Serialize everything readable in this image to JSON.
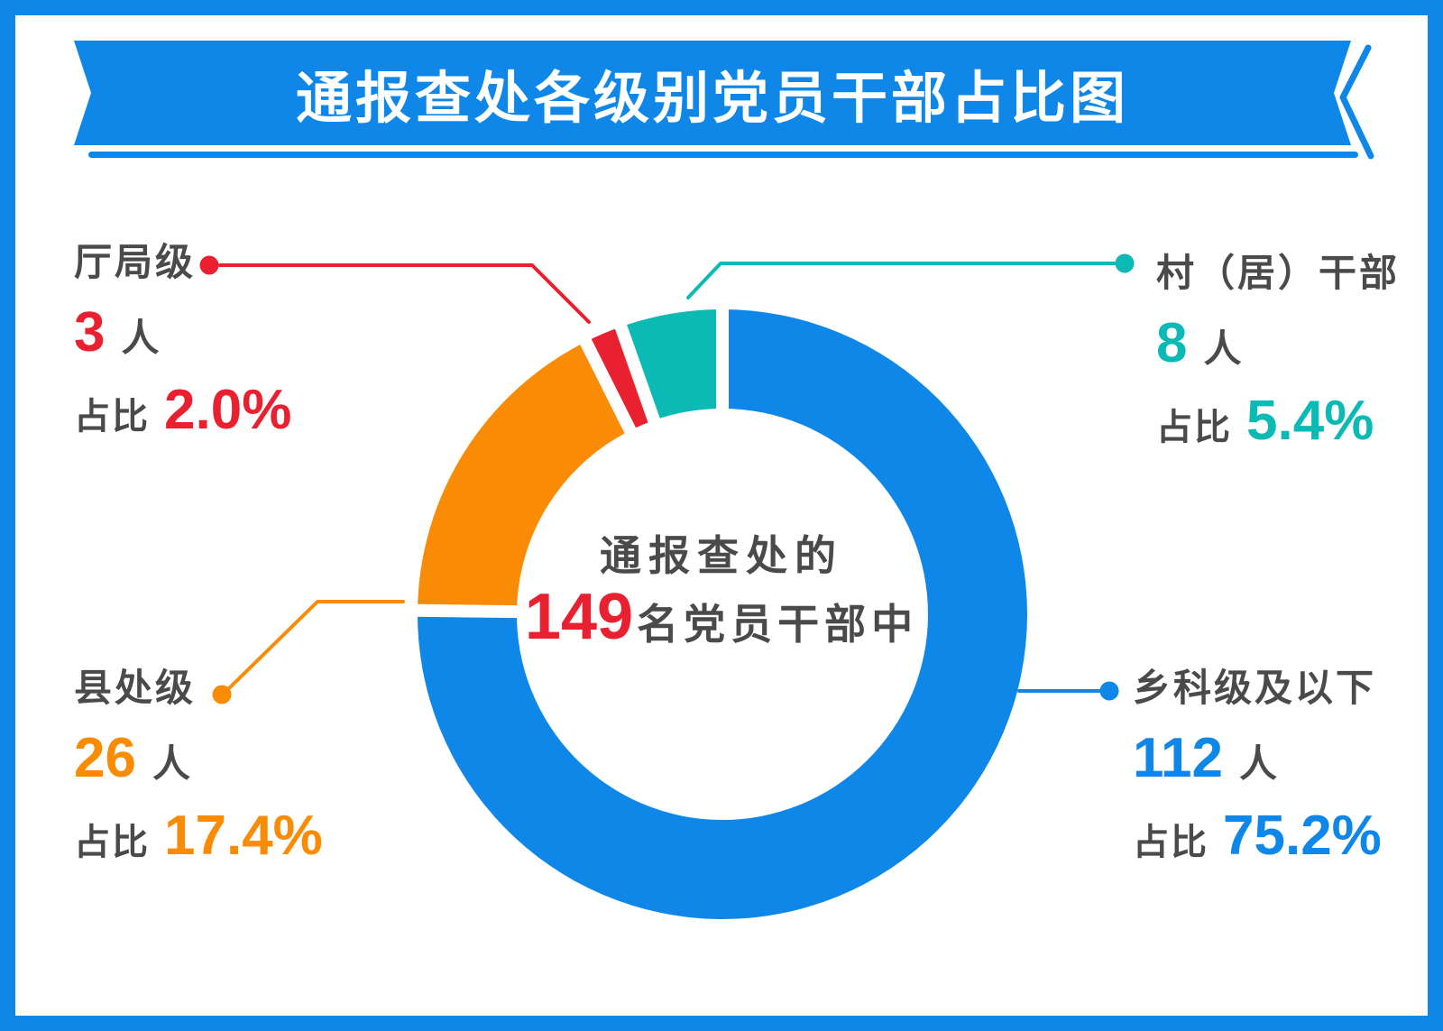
{
  "title": "通报查处各级别党员干部占比图",
  "center": {
    "line1": "通报查处的",
    "count": "149",
    "line2_rest": "名党员干部中"
  },
  "strings": {
    "unit": "人",
    "ratio": "占比"
  },
  "colors": {
    "banner": "#0E87E9",
    "text": "#4A4A4A",
    "background": "#FFFFFF",
    "gap": "#FFFFFF"
  },
  "chart_data": {
    "type": "pie",
    "subtype": "donut",
    "title": "通报查处各级别党员干部占比图",
    "center_label": "通报查处的149名党员干部中",
    "total_count": 149,
    "unit": "人",
    "start_angle_deg": 0,
    "direction": "clockwise",
    "inner_radius_ratio": 0.675,
    "legend_position": "corners",
    "series": [
      {
        "key": "township-level-and-below",
        "label": "乡科级及以下",
        "count": 112,
        "value": 75.2,
        "pct_label": "75.2%",
        "color": "#0E87E9"
      },
      {
        "key": "county-level",
        "label": "县处级",
        "count": 26,
        "value": 17.4,
        "pct_label": "17.4%",
        "color": "#FA8B05"
      },
      {
        "key": "department-bureau-level",
        "label": "厅局级",
        "count": 3,
        "value": 2.0,
        "pct_label": "2.0%",
        "color": "#E9202F"
      },
      {
        "key": "village-resident-cadres",
        "label": "村（居）干部",
        "count": 8,
        "value": 5.4,
        "pct_label": "5.4%",
        "color": "#0CBAB5"
      }
    ]
  }
}
